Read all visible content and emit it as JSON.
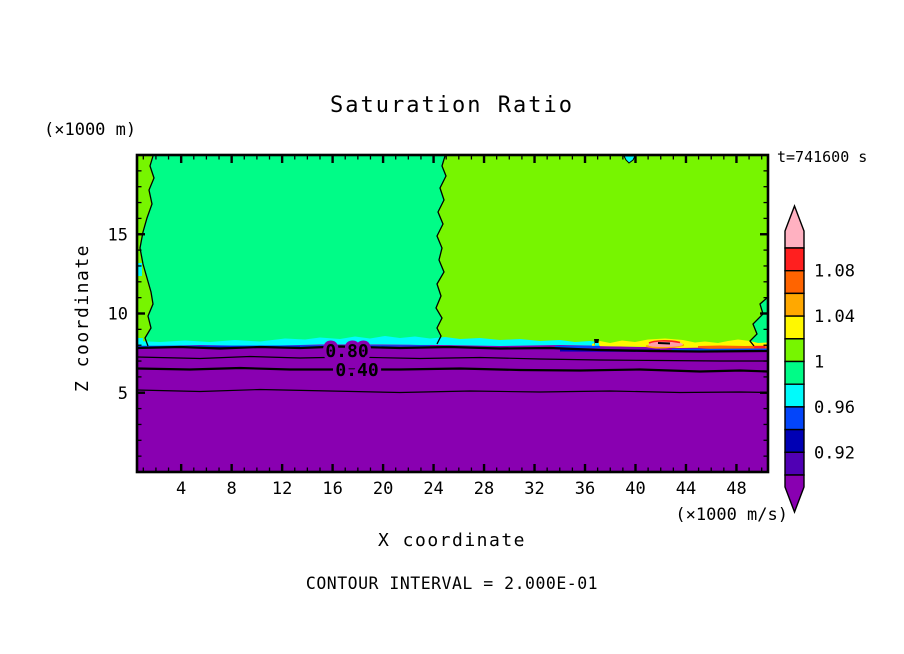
{
  "figure": {
    "title": "Saturation Ratio",
    "time_label": "t=741600 s",
    "footer": "CONTOUR INTERVAL = 2.000E-01"
  },
  "chart_data": {
    "type": "heatmap",
    "subtype": "filled-contour-plot",
    "title": "Saturation Ratio",
    "xlabel": "X coordinate",
    "x_unit": "(×1000 m/s)",
    "ylabel": "Z coordinate",
    "y_unit": "(×1000 m)",
    "time_annotation": "t=741600 s",
    "contour_interval_text": "CONTOUR INTERVAL = 2.000E-01",
    "contour_interval": 0.2,
    "x_ticks": [
      4,
      8,
      12,
      16,
      20,
      24,
      28,
      32,
      36,
      40,
      44,
      48
    ],
    "x_minor_step": 1,
    "x_range": [
      0.5,
      50.5
    ],
    "y_ticks": [
      5,
      10,
      15
    ],
    "y_minor_step": 1,
    "y_range": [
      0,
      20
    ],
    "grid": false,
    "legend_position": "right-colorbar",
    "colorbar": {
      "position": "right",
      "step": 0.02,
      "level_min": 0.9,
      "level_max": 1.1,
      "labels": [
        "1.08",
        "1.04",
        "1",
        "0.96",
        "0.92"
      ],
      "label_boundary_indices": [
        1,
        3,
        5,
        7,
        9
      ],
      "colors_top_to_bottom": [
        "#ff1f1f",
        "#ff6400",
        "#ffa800",
        "#fff800",
        "#77f500",
        "#00fc87",
        "#00fbfb",
        "#0345fa",
        "#0000b4",
        "#5000b4"
      ],
      "above_max_color": "#ffb1c1",
      "below_min_color": "#8900b1"
    },
    "contour_labels": [
      "0.80",
      "0.40"
    ],
    "regions": [
      {
        "label": "upper-left region (x ≲ 24, z ≳ 8)",
        "saturation": "0.98–1.00",
        "color": "#00fc87"
      },
      {
        "label": "upper-right region (x ≳ 24, z ≳ 8)",
        "saturation": "1.00–1.02",
        "color": "#77f500"
      },
      {
        "label": "far-left edge strip (z ≳ 8)",
        "saturation": "1.00–1.02",
        "color": "#77f500"
      },
      {
        "label": "thin layer at z ≈ 8, left half",
        "saturation": "0.96–0.98",
        "color": "#00fbfb"
      },
      {
        "label": "thin layer at z ≈ 8, right half (patches)",
        "saturation": "1.02–1.10+",
        "color": "#fff800"
      },
      {
        "label": "supersaturated pocket near x ≈ 42, z ≈ 8",
        "saturation": "> 1.10",
        "color": "#ffb1c1"
      },
      {
        "label": "below z ≈ 8",
        "saturation": "< 0.90 decreasing downward",
        "color": "#8900b1"
      },
      {
        "label": "contour line at z ≈ 7.7",
        "saturation": "0.80",
        "color": "#000000"
      },
      {
        "label": "contour line at z ≈ 7.2",
        "saturation": "0.60",
        "color": "#000000"
      },
      {
        "label": "contour line at z ≈ 6.4",
        "saturation": "0.40",
        "color": "#000000"
      },
      {
        "label": "contour line at z ≈ 5.1",
        "saturation": "0.20",
        "color": "#000000"
      }
    ]
  }
}
